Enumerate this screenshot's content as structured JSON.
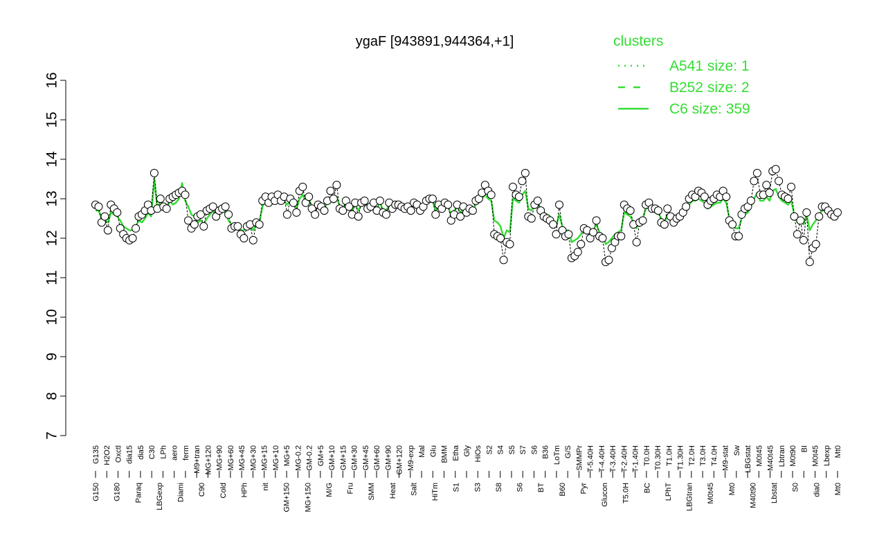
{
  "colors": {
    "cluster_line": "#33dd33",
    "data_line": "#000000",
    "point_fill": "#ffffff",
    "legend_title": "#33dd33"
  },
  "chart_data": {
    "type": "line",
    "title": "ygaF [943891,944364,+1]",
    "xlabel": "",
    "ylabel": "",
    "ylim": [
      7,
      16
    ],
    "yticks": [
      7,
      8,
      9,
      10,
      11,
      12,
      13,
      14,
      15,
      16
    ],
    "grid": false,
    "legend": {
      "title": "clusters",
      "placement": "top-right",
      "entries": [
        {
          "label": "A541 size: 1",
          "style": "dotted"
        },
        {
          "label": "B252 size: 2",
          "style": "dashed"
        },
        {
          "label": "C6 size: 359",
          "style": "solid"
        }
      ]
    },
    "x_tick_labels_row1": [
      "G135",
      "H2O2",
      "Oxctl",
      "dia15",
      "dia5",
      "C30",
      "LPh",
      "aero",
      "ferm",
      "M9+tran",
      "MG+120",
      "MG+90",
      "MG+60",
      "MG+45",
      "MG+30",
      "MG+15",
      "MG+10",
      "MG+5",
      "MG-0.2",
      "GM-0.2",
      "GM+5",
      "GM+10",
      "GM+15",
      "GM+30",
      "GM+45",
      "GM+60",
      "GM+90",
      "GM+120",
      "M9-exp",
      "Mal",
      "Glu",
      "BMM",
      "Etha",
      "Gly",
      "HiOs",
      "S2",
      "S4",
      "S5",
      "S7",
      "S6",
      "B36",
      "LoTm",
      "G/S",
      "SMMPr",
      "T-5.40H",
      "T-4.40H",
      "T-3.40H",
      "T-2.40H",
      "T-1.40H",
      "T0.0H",
      "T0.30H",
      "T1.0H",
      "T1.30H",
      "T2.0H",
      "T3.0H",
      "T4.0H",
      "M9-stat",
      "Sw",
      "LBGstat",
      "M0t45",
      "M40t45",
      "Lbtran",
      "M0t90",
      "BI",
      "M0t45",
      "Lbexp",
      "Mt0"
    ],
    "x_tick_labels_row2": [
      "G150",
      "G180",
      "Paraq",
      "LBGexp",
      "Diami",
      "C90",
      "Cold",
      "HPh",
      "nit",
      "GM+150",
      "MG+150",
      "M/G",
      "Fru",
      "SMM",
      "Heat",
      "Salt",
      "HiTm",
      "S1",
      "S3",
      "S8",
      "S6",
      "BT",
      "B60",
      "Pyr",
      "Glucon",
      "T5.0H",
      "BC",
      "LPhT",
      "LBGtran",
      "M0t45",
      "Mt0",
      "M40t90",
      "Lbstat",
      "S0",
      "dia0",
      "Mt0"
    ],
    "series": [
      {
        "kind": "expression",
        "values": [
          12.85,
          12.8,
          12.4,
          12.55,
          12.2,
          12.85,
          12.75,
          12.65,
          12.25,
          12.1,
          12.0,
          11.95,
          12.0,
          12.25,
          12.55,
          12.6,
          12.7,
          12.85,
          12.7,
          13.65,
          12.75,
          13.0,
          12.8,
          12.75,
          13.0,
          13.05,
          13.1,
          13.15,
          13.2,
          13.1,
          12.45,
          12.25,
          12.35,
          12.55,
          12.6,
          12.3,
          12.7,
          12.75,
          12.8,
          12.55,
          12.7,
          12.75,
          12.8,
          12.6,
          12.25,
          12.3,
          12.3,
          12.1,
          12.0,
          12.3,
          12.35,
          11.95,
          12.4,
          12.35,
          12.95,
          13.05,
          12.9,
          13.05,
          12.95,
          13.1,
          12.95,
          13.05,
          12.6,
          13.0,
          12.9,
          12.65,
          13.2,
          13.3,
          12.9,
          13.05,
          12.75,
          12.6,
          12.85,
          12.8,
          12.7,
          12.95,
          13.2,
          13.0,
          13.35,
          12.75,
          12.7,
          12.95,
          12.8,
          12.6,
          12.9,
          12.55,
          12.9,
          12.95,
          12.75,
          12.8,
          12.9,
          12.7,
          12.95,
          12.65,
          12.6,
          12.9,
          12.75,
          12.85,
          12.85,
          12.8,
          12.75,
          12.8,
          12.7,
          12.9,
          12.85,
          12.7,
          12.8,
          12.95,
          13.0,
          13.0,
          12.6,
          12.85,
          12.75,
          12.9,
          12.85,
          12.45,
          12.6,
          12.85,
          12.55,
          12.8,
          12.65,
          12.75,
          12.7,
          12.95,
          13.0,
          13.15,
          13.35,
          13.2,
          13.1,
          12.1,
          12.05,
          12.0,
          11.45,
          11.9,
          11.85,
          13.3,
          13.1,
          13.05,
          13.45,
          13.65,
          12.55,
          12.5,
          12.85,
          12.95,
          12.7,
          12.55,
          12.5,
          12.45,
          12.35,
          12.1,
          12.85,
          12.2,
          12.05,
          12.1,
          11.5,
          11.55,
          11.65,
          11.85,
          12.25,
          12.2,
          12.0,
          12.15,
          12.45,
          12.05,
          12.0,
          11.4,
          11.45,
          11.75,
          11.9,
          12.05,
          12.05,
          12.85,
          12.75,
          12.7,
          12.35,
          11.9,
          12.4,
          12.45,
          12.85,
          12.9,
          12.75,
          12.75,
          12.7,
          12.4,
          12.35,
          12.75,
          12.55,
          12.4,
          12.5,
          12.55,
          12.65,
          12.8,
          13.0,
          13.1,
          13.05,
          13.2,
          13.15,
          13.05,
          12.85,
          12.95,
          13.0,
          13.1,
          13.05,
          13.2,
          13.05,
          12.45,
          12.35,
          12.05,
          12.05,
          12.6,
          12.75,
          12.8,
          12.95,
          13.45,
          13.65,
          13.1,
          13.1,
          13.35,
          13.15,
          13.7,
          13.75,
          13.45,
          13.1,
          13.05,
          13.0,
          13.3,
          12.55,
          12.1,
          12.45,
          11.95,
          12.65,
          11.4,
          11.75,
          11.85,
          12.55,
          12.8,
          12.8,
          12.7,
          12.6,
          12.55,
          12.65
        ]
      },
      {
        "kind": "cluster",
        "name": "C6 size: 359",
        "values": [
          12.7,
          12.7,
          12.5,
          12.45,
          12.4,
          12.65,
          12.6,
          12.55,
          12.45,
          12.3,
          12.25,
          12.2,
          12.2,
          12.3,
          12.45,
          12.4,
          12.5,
          12.65,
          12.55,
          13.5,
          12.75,
          12.95,
          12.75,
          12.7,
          12.95,
          12.85,
          12.9,
          13.0,
          13.4,
          12.95,
          12.8,
          12.6,
          12.55,
          12.4,
          12.45,
          12.35,
          12.5,
          12.6,
          12.7,
          12.5,
          12.6,
          12.7,
          12.65,
          12.45,
          12.35,
          12.3,
          12.25,
          12.2,
          12.2,
          12.35,
          12.3,
          12.2,
          12.35,
          12.4,
          12.8,
          12.95,
          12.85,
          12.95,
          12.9,
          13.0,
          12.9,
          12.95,
          12.85,
          12.95,
          12.85,
          12.75,
          13.0,
          13.1,
          12.9,
          13.0,
          12.8,
          12.7,
          12.85,
          12.8,
          12.75,
          12.9,
          13.0,
          12.9,
          13.05,
          12.8,
          12.75,
          12.9,
          12.8,
          12.7,
          12.85,
          12.7,
          12.85,
          12.9,
          12.8,
          12.8,
          12.85,
          12.75,
          12.9,
          12.7,
          12.7,
          12.85,
          12.8,
          12.85,
          12.85,
          12.8,
          12.8,
          12.85,
          12.75,
          12.9,
          12.85,
          12.75,
          12.8,
          12.9,
          12.95,
          12.95,
          12.7,
          12.85,
          12.75,
          12.85,
          12.8,
          12.6,
          12.7,
          12.8,
          12.65,
          12.75,
          12.7,
          12.75,
          12.7,
          12.85,
          12.9,
          13.0,
          13.1,
          13.0,
          12.95,
          12.45,
          12.4,
          12.3,
          12.0,
          12.2,
          12.15,
          13.0,
          12.95,
          12.9,
          13.1,
          13.2,
          12.75,
          12.7,
          12.85,
          12.9,
          12.75,
          12.65,
          12.6,
          12.55,
          12.45,
          12.3,
          12.6,
          12.3,
          12.2,
          12.2,
          11.9,
          11.95,
          12.0,
          12.1,
          12.3,
          12.25,
          12.15,
          12.2,
          12.35,
          12.15,
          12.1,
          11.85,
          11.9,
          12.0,
          12.1,
          12.15,
          12.2,
          12.65,
          12.6,
          12.55,
          12.4,
          12.25,
          12.45,
          12.5,
          12.75,
          12.8,
          12.7,
          12.7,
          12.65,
          12.5,
          12.4,
          12.6,
          12.5,
          12.4,
          12.45,
          12.5,
          12.55,
          12.65,
          12.85,
          12.95,
          12.95,
          13.0,
          12.95,
          12.9,
          12.75,
          12.8,
          12.85,
          12.9,
          12.9,
          13.0,
          12.9,
          12.5,
          12.4,
          12.25,
          12.25,
          12.5,
          12.6,
          12.65,
          12.8,
          13.0,
          13.15,
          12.95,
          12.95,
          13.05,
          12.95,
          13.2,
          13.25,
          13.05,
          12.95,
          12.9,
          12.85,
          12.95,
          12.6,
          12.4,
          12.5,
          12.35,
          12.6,
          12.2,
          12.35,
          12.45,
          12.6,
          12.7,
          12.7,
          12.65,
          12.6,
          12.55,
          12.6
        ]
      }
    ]
  }
}
